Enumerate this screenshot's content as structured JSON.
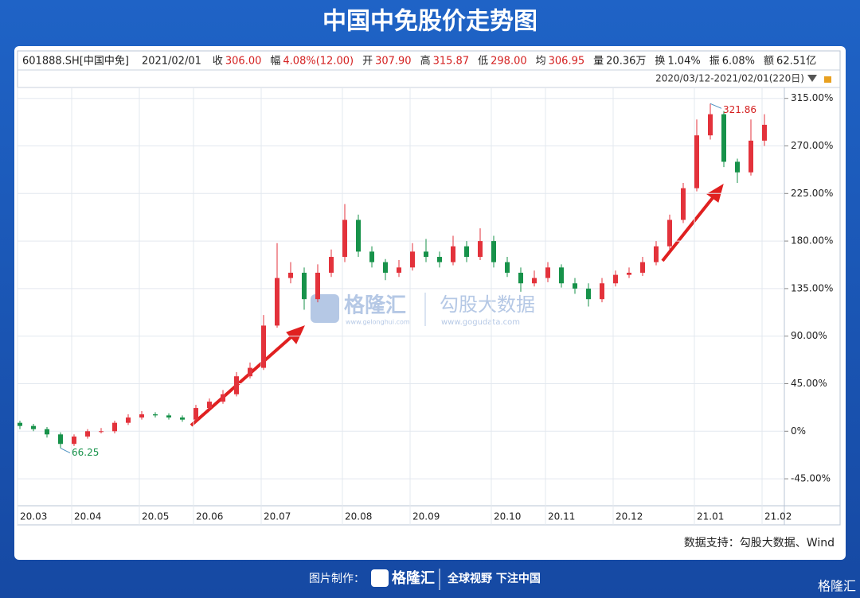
{
  "header": {
    "title": "中国中免股价走势图"
  },
  "info": {
    "code": "601888.SH[中国中免]",
    "date": "2021/02/01",
    "items": [
      {
        "label": "收",
        "value": "306.00"
      },
      {
        "label": "幅",
        "value": "4.08%(12.00)"
      },
      {
        "label": "开",
        "value": "307.90"
      },
      {
        "label": "高",
        "value": "315.87"
      },
      {
        "label": "低",
        "value": "298.00"
      },
      {
        "label": "均",
        "value": "306.95"
      },
      {
        "label": "量",
        "value": "20.36万"
      },
      {
        "label": "换",
        "value": "1.04%"
      },
      {
        "label": "振",
        "value": "6.08%"
      },
      {
        "label": "额",
        "value": "62.51亿"
      }
    ],
    "range": "2020/03/12-2021/02/01(220日)"
  },
  "chart_data": {
    "type": "candlestick",
    "up_color": "#e3323b",
    "down_color": "#17924a",
    "categories": [
      "20.03",
      null,
      null,
      null,
      "20.04",
      null,
      null,
      null,
      null,
      "20.05",
      null,
      null,
      null,
      "20.06",
      null,
      null,
      null,
      null,
      "20.07",
      null,
      null,
      null,
      null,
      null,
      "20.08",
      null,
      null,
      null,
      null,
      "20.09",
      null,
      null,
      null,
      null,
      null,
      "20.10",
      null,
      null,
      null,
      "20.11",
      null,
      null,
      null,
      null,
      "20.12",
      null,
      null,
      null,
      null,
      null,
      "21.01",
      null,
      null,
      null,
      null,
      "21.02"
    ],
    "open": [
      8,
      5,
      2,
      -3,
      -12,
      -5,
      0,
      0,
      8,
      13,
      16,
      15,
      13,
      11,
      22,
      28,
      35,
      52,
      60,
      100,
      145,
      150,
      125,
      150,
      165,
      200,
      170,
      160,
      150,
      155,
      170,
      165,
      160,
      175,
      165,
      180,
      160,
      150,
      140,
      145,
      155,
      140,
      135,
      125,
      140,
      148,
      150,
      160,
      175,
      200,
      230,
      280,
      300,
      255,
      245,
      275
    ],
    "high": [
      10,
      7,
      4,
      -1,
      -3,
      2,
      3,
      10,
      16,
      19,
      18,
      17,
      15,
      25,
      31,
      39,
      56,
      65,
      110,
      178,
      160,
      155,
      158,
      172,
      215,
      205,
      175,
      163,
      162,
      178,
      182,
      170,
      185,
      180,
      192,
      185,
      165,
      155,
      152,
      160,
      158,
      145,
      140,
      145,
      152,
      155,
      165,
      180,
      205,
      235,
      295,
      310,
      303,
      258,
      295,
      300
    ],
    "low": [
      2,
      0,
      -6,
      -16,
      -14,
      -7,
      -2,
      -2,
      6,
      11,
      13,
      11,
      9,
      9,
      20,
      26,
      33,
      50,
      58,
      98,
      140,
      115,
      122,
      146,
      160,
      165,
      155,
      143,
      146,
      152,
      160,
      155,
      157,
      160,
      162,
      155,
      146,
      132,
      137,
      141,
      136,
      130,
      118,
      122,
      137,
      145,
      147,
      157,
      172,
      197,
      227,
      276,
      250,
      235,
      242,
      270
    ],
    "close": [
      5,
      2,
      -3,
      -12,
      -5,
      0,
      0,
      8,
      13,
      16,
      15,
      13,
      11,
      22,
      28,
      35,
      52,
      60,
      100,
      145,
      150,
      125,
      150,
      165,
      200,
      170,
      160,
      150,
      155,
      170,
      165,
      160,
      175,
      165,
      180,
      160,
      150,
      140,
      145,
      155,
      140,
      135,
      125,
      140,
      148,
      150,
      160,
      175,
      200,
      230,
      280,
      300,
      255,
      245,
      275,
      290
    ],
    "ylim": [
      -66,
      322
    ],
    "yticks": [
      {
        "value": 315,
        "label": "315.00%"
      },
      {
        "value": 270,
        "label": "270.00%"
      },
      {
        "value": 225,
        "label": "225.00%"
      },
      {
        "value": 180,
        "label": "180.00%"
      },
      {
        "value": 135,
        "label": "135.00%"
      },
      {
        "value": 90,
        "label": "90.00%"
      },
      {
        "value": 45,
        "label": "45.00%"
      },
      {
        "value": 0,
        "label": "0%"
      },
      {
        "value": -45,
        "label": "-45.00%"
      }
    ],
    "grid": true,
    "annotations": [
      "321.86",
      "66.25"
    ]
  },
  "watermark": {
    "brand": "格隆汇",
    "brand_url": "www.gelonghui.com",
    "data": "勾股大数据",
    "data_url": "www.gogudata.com"
  },
  "source": "数据支持：勾股大数据、Wind",
  "footer": {
    "made_by": "图片制作：",
    "brand": "格隆汇",
    "slogan": "全球视野 下注中国",
    "corner": "格隆汇"
  }
}
